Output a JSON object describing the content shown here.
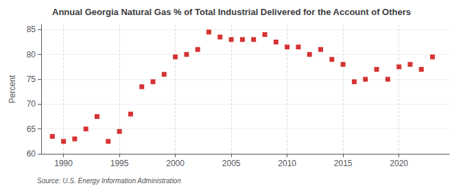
{
  "chart_data": {
    "type": "scatter",
    "title": "Annual Georgia Natural Gas % of Total Industrial Delivered for the Account of Others",
    "ylabel": "Percent",
    "source": "Source: U.S. Energy Information Administration",
    "x": [
      1989,
      1990,
      1991,
      1992,
      1993,
      1994,
      1995,
      1996,
      1997,
      1998,
      1999,
      2000,
      2001,
      2002,
      2003,
      2004,
      2005,
      2006,
      2007,
      2008,
      2009,
      2010,
      2011,
      2012,
      2013,
      2014,
      2015,
      2016,
      2017,
      2018,
      2019,
      2020,
      2021,
      2022,
      2023
    ],
    "values": [
      63.5,
      62.5,
      63.0,
      65.0,
      67.5,
      62.5,
      64.5,
      68.0,
      73.5,
      74.5,
      76.0,
      79.5,
      80.0,
      81.0,
      84.5,
      83.5,
      83.0,
      83.0,
      83.0,
      84.0,
      82.5,
      81.5,
      81.5,
      80.0,
      81.0,
      79.0,
      78.0,
      74.5,
      75.0,
      77.0,
      75.0,
      77.5,
      78.0,
      77.0,
      79.5
    ],
    "color": "#cc0000",
    "marker": "square",
    "xlim": [
      1988.0,
      2024.5
    ],
    "xticks": [
      1990,
      1995,
      2000,
      2005,
      2010,
      2015,
      2020
    ],
    "ylim": [
      60,
      86
    ],
    "yticks": [
      60,
      65,
      70,
      75,
      80,
      85
    ],
    "grid": true
  }
}
